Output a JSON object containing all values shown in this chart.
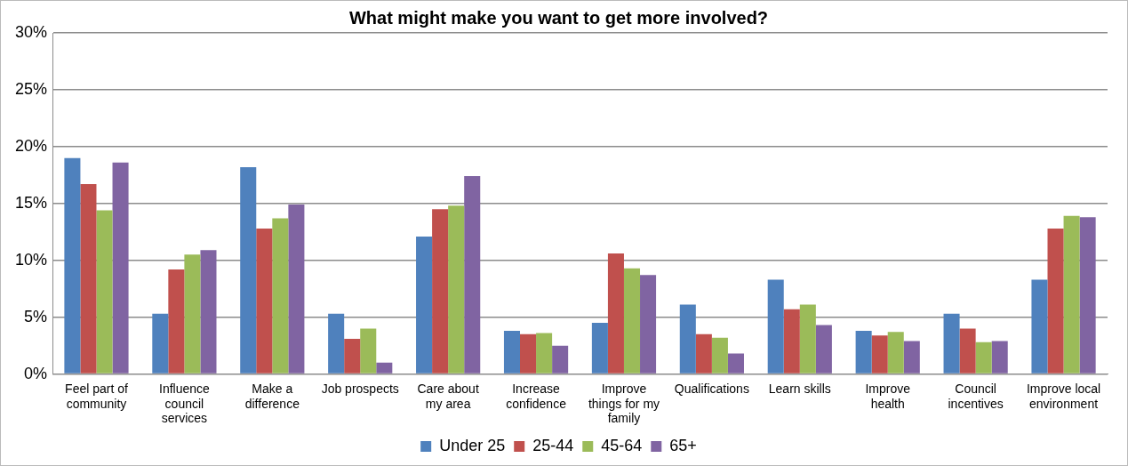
{
  "chart_data": {
    "type": "bar",
    "title": "What might make you want to get more involved?",
    "categories": [
      "Feel part of community",
      "Influence council services",
      "Make a difference",
      "Job prospects",
      "Care about my area",
      "Increase confidence",
      "Improve things for my family",
      "Qualifications",
      "Learn skills",
      "Improve health",
      "Council incentives",
      "Improve local environment"
    ],
    "series": [
      {
        "name": "Under 25",
        "color": "#4f81bd",
        "values": [
          19.0,
          5.3,
          18.2,
          5.3,
          12.1,
          3.8,
          4.5,
          6.1,
          8.3,
          3.8,
          5.3,
          8.3
        ]
      },
      {
        "name": "25-44",
        "color": "#c0504d",
        "values": [
          16.7,
          9.2,
          12.8,
          3.1,
          14.5,
          3.5,
          10.6,
          3.5,
          5.7,
          3.4,
          4.0,
          12.8
        ]
      },
      {
        "name": "45-64",
        "color": "#9bbb59",
        "values": [
          14.4,
          10.5,
          13.7,
          4.0,
          14.8,
          3.6,
          9.3,
          3.2,
          6.1,
          3.7,
          2.8,
          13.9
        ]
      },
      {
        "name": "65+",
        "color": "#8064a2",
        "values": [
          18.6,
          10.9,
          14.9,
          1.0,
          17.4,
          2.5,
          8.7,
          1.8,
          4.3,
          2.9,
          2.9,
          13.8
        ]
      }
    ],
    "ylim": [
      0,
      30
    ],
    "yticks": [
      {
        "value": 0,
        "label": "0%"
      },
      {
        "value": 5,
        "label": "5%"
      },
      {
        "value": 10,
        "label": "10%"
      },
      {
        "value": 15,
        "label": "15%"
      },
      {
        "value": 20,
        "label": "20%"
      },
      {
        "value": 25,
        "label": "25%"
      },
      {
        "value": 30,
        "label": "30%"
      }
    ],
    "grid": "y",
    "legend": "bottom"
  }
}
